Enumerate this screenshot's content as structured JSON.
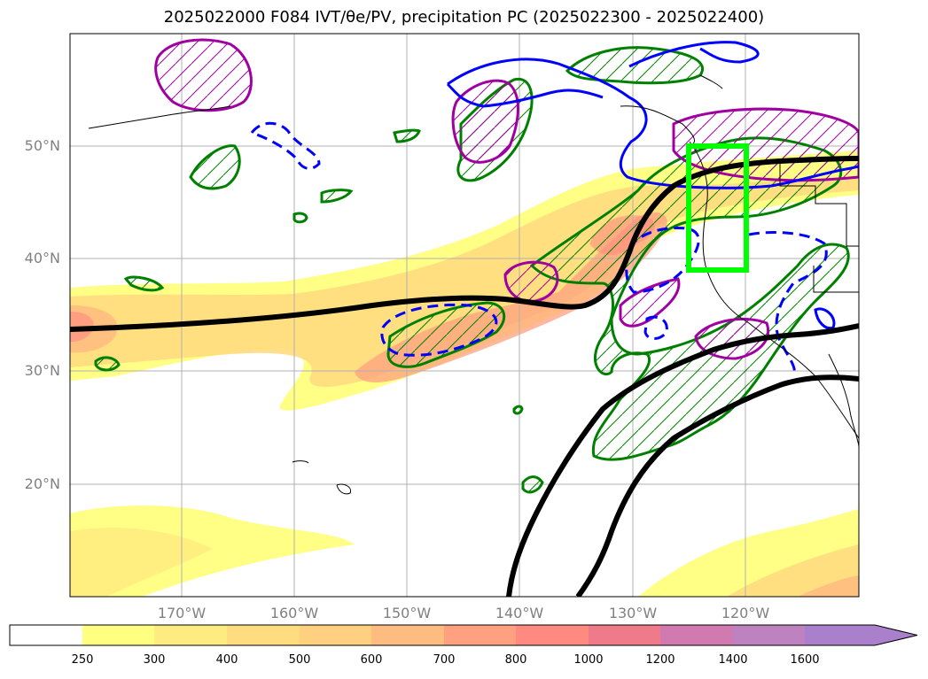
{
  "title": "2025022000 F084 IVT/θe/PV, precipitation PC (2025022300 - 2025022400)",
  "lat_labels": [
    "50°N",
    "40°N",
    "30°N",
    "20°N"
  ],
  "lon_labels": [
    "170°W",
    "160°W",
    "150°W",
    "140°W",
    "130°W",
    "120°W"
  ],
  "colorbar": {
    "ticks": [
      "250",
      "300",
      "400",
      "500",
      "600",
      "700",
      "800",
      "1000",
      "1200",
      "1400",
      "1600"
    ],
    "colors": [
      "#ffffff",
      "#ffff80",
      "#ffec80",
      "#ffdc80",
      "#ffd080",
      "#ffbc80",
      "#ffa080",
      "#ff8a80",
      "#ee7a8a",
      "#d07ab0",
      "#be82c0",
      "#aa80cc"
    ],
    "extend": "max"
  },
  "legend_colors": {
    "ivt_fill": "#ffd080",
    "theta_e_contour": "#000000",
    "pv_positive": "#a000a0",
    "pv_anomaly": "#0000ff",
    "precip_pc": "#008000",
    "target_box": "#00ff00",
    "coastline": "#000000",
    "grid": "#b0b0b0"
  },
  "map_extent": {
    "lon_min": -180,
    "lon_max": -110,
    "lat_min": 10,
    "lat_max": 60
  },
  "target_box": {
    "lon_min": -125,
    "lon_max": -120,
    "lat_min": 39,
    "lat_max": 50
  }
}
